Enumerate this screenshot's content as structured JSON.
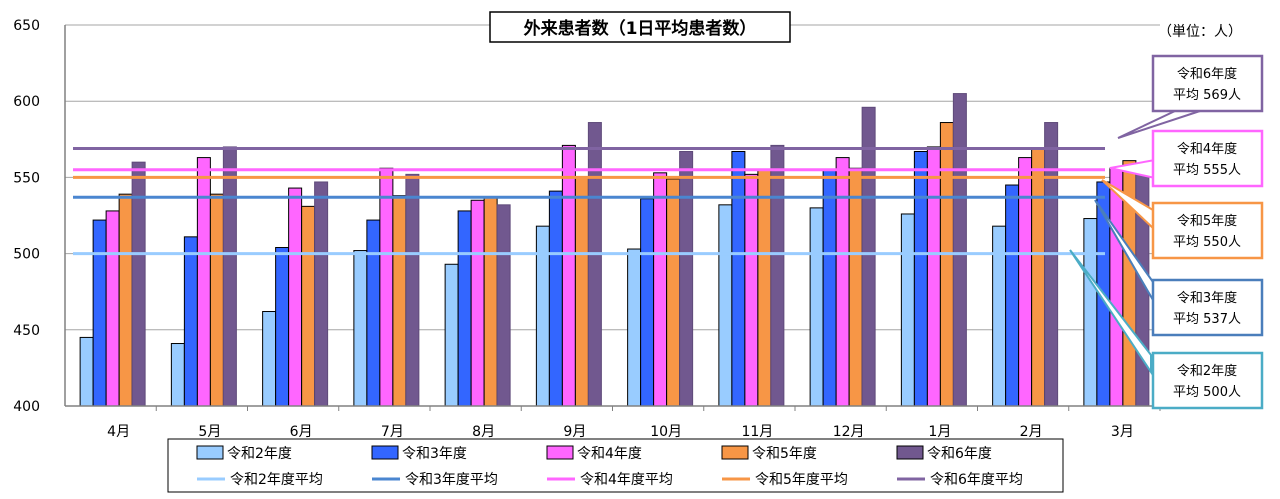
{
  "chart_data": {
    "type": "bar",
    "title": "外来患者数（1日平均患者数）",
    "unit_label": "（単位：人）",
    "ylim": [
      400,
      650
    ],
    "yticks": [
      400,
      450,
      500,
      550,
      600,
      650
    ],
    "grid": true,
    "categories": [
      "4月",
      "5月",
      "6月",
      "7月",
      "8月",
      "9月",
      "10月",
      "11月",
      "12月",
      "1月",
      "2月",
      "3月"
    ],
    "series": [
      {
        "name": "令和2年度",
        "color": "#99ccff",
        "values": [
          445,
          441,
          462,
          502,
          493,
          518,
          503,
          532,
          530,
          526,
          518,
          523
        ]
      },
      {
        "name": "令和3年度",
        "color": "#3366ff",
        "values": [
          522,
          511,
          504,
          522,
          528,
          541,
          536,
          567,
          555,
          567,
          545,
          547
        ]
      },
      {
        "name": "令和4年度",
        "color": "#ff66ff",
        "values": [
          528,
          563,
          543,
          556,
          535,
          571,
          553,
          552,
          563,
          570,
          563,
          556
        ]
      },
      {
        "name": "令和5年度",
        "color": "#f79646",
        "values": [
          539,
          539,
          531,
          538,
          537,
          550,
          549,
          555,
          556,
          586,
          569,
          561
        ]
      },
      {
        "name": "令和6年度",
        "color": "#71588f",
        "values": [
          560,
          570,
          547,
          552,
          532,
          586,
          567,
          571,
          596,
          605,
          586,
          552
        ]
      }
    ],
    "averages": [
      {
        "name": "令和2年度平均",
        "color": "#99ccff",
        "value": 500,
        "callout": [
          "令和2年度",
          "平均 500人"
        ],
        "callout_color": "#4bacc6"
      },
      {
        "name": "令和3年度平均",
        "color": "#4a86d0",
        "value": 537,
        "callout": [
          "令和3年度",
          "平均 537人"
        ],
        "callout_color": "#4a7ebb"
      },
      {
        "name": "令和4年度平均",
        "color": "#ff66ff",
        "value": 555,
        "callout": [
          "令和4年度",
          "平均 555人"
        ],
        "callout_color": "#ff66ff"
      },
      {
        "name": "令和5年度平均",
        "color": "#f79646",
        "value": 550,
        "callout": [
          "令和5年度",
          "平均 550人"
        ],
        "callout_color": "#f79646"
      },
      {
        "name": "令和6年度平均",
        "color": "#8064a2",
        "value": 569,
        "callout": [
          "令和6年度",
          "平均 569人"
        ],
        "callout_color": "#8064a2"
      }
    ],
    "legend_position": "bottom"
  }
}
